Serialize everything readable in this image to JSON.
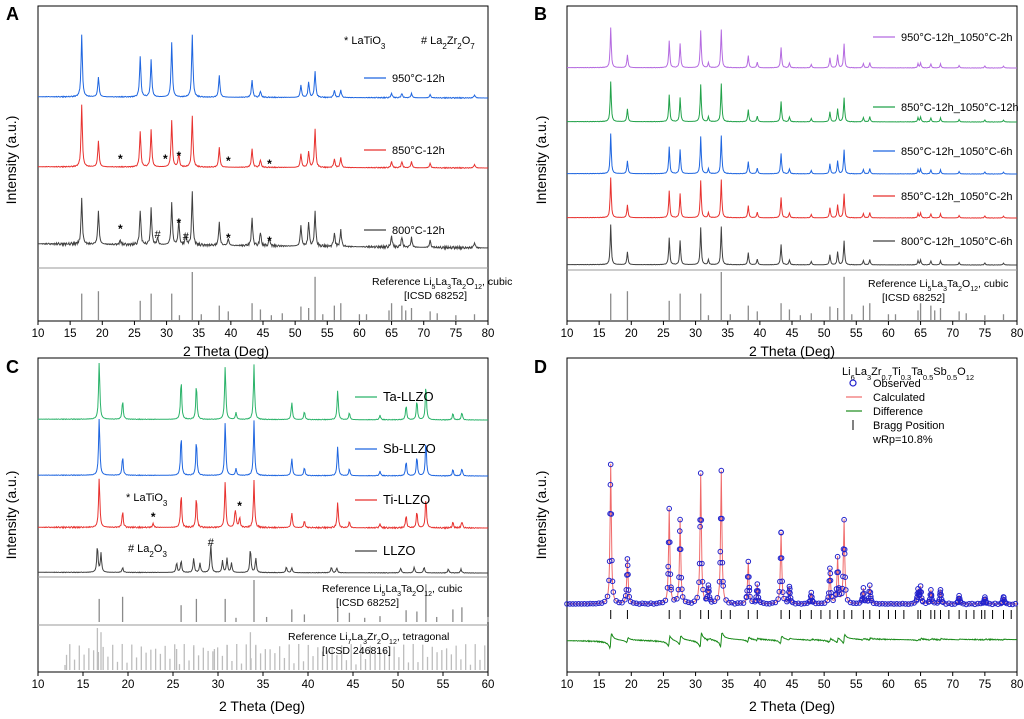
{
  "chart_data": [
    {
      "panel": "A",
      "type": "line",
      "xlabel": "2 Theta (Deg)",
      "ylabel": "Intensity (a.u.)",
      "xlim": [
        10,
        80
      ],
      "xticks": [
        10,
        15,
        20,
        25,
        30,
        35,
        40,
        45,
        50,
        55,
        60,
        65,
        70,
        75,
        80
      ],
      "annotations_header": [
        "* LaTiO3",
        "# La2Zr2O7"
      ],
      "series": [
        {
          "name": "950°C-12h",
          "color": "#1f66e0",
          "peaks": [
            [
              16.8,
              1.0
            ],
            [
              19.4,
              0.32
            ],
            [
              25.9,
              0.66
            ],
            [
              27.6,
              0.6
            ],
            [
              30.8,
              0.88
            ],
            [
              34.0,
              1.0
            ],
            [
              38.2,
              0.35
            ],
            [
              43.3,
              0.28
            ],
            [
              44.6,
              0.1
            ],
            [
              50.9,
              0.2
            ],
            [
              52.1,
              0.25
            ],
            [
              53.1,
              0.42
            ],
            [
              56.1,
              0.12
            ],
            [
              57.1,
              0.12
            ],
            [
              65.0,
              0.07
            ],
            [
              66.6,
              0.07
            ],
            [
              68.1,
              0.07
            ],
            [
              71.0,
              0.05
            ],
            [
              77.9,
              0.05
            ]
          ]
        },
        {
          "name": "850°C-12h",
          "color": "#e8322f",
          "peaks": [
            [
              16.8,
              1.0
            ],
            [
              19.4,
              0.42
            ],
            [
              25.9,
              0.58
            ],
            [
              27.6,
              0.6
            ],
            [
              30.8,
              0.75
            ],
            [
              31.9,
              0.22
            ],
            [
              34.0,
              0.82
            ],
            [
              38.2,
              0.32
            ],
            [
              43.3,
              0.3
            ],
            [
              44.6,
              0.12
            ],
            [
              50.9,
              0.22
            ],
            [
              52.1,
              0.26
            ],
            [
              53.1,
              0.62
            ],
            [
              56.1,
              0.14
            ],
            [
              57.1,
              0.16
            ],
            [
              65.0,
              0.1
            ],
            [
              66.6,
              0.1
            ],
            [
              68.1,
              0.1
            ],
            [
              71.0,
              0.07
            ],
            [
              77.9,
              0.06
            ]
          ]
        },
        {
          "name": "800°C-12h",
          "color": "#404040",
          "peaks": [
            [
              16.8,
              0.65
            ],
            [
              19.4,
              0.48
            ],
            [
              22.8,
              0.06
            ],
            [
              25.9,
              0.5
            ],
            [
              27.6,
              0.52
            ],
            [
              28.6,
              0.1
            ],
            [
              30.8,
              0.6
            ],
            [
              31.9,
              0.35
            ],
            [
              33.0,
              0.14
            ],
            [
              34.0,
              0.75
            ],
            [
              38.2,
              0.33
            ],
            [
              39.6,
              0.1
            ],
            [
              43.3,
              0.4
            ],
            [
              44.6,
              0.2
            ],
            [
              46.0,
              0.1
            ],
            [
              50.9,
              0.3
            ],
            [
              52.1,
              0.35
            ],
            [
              53.1,
              0.5
            ],
            [
              56.1,
              0.2
            ],
            [
              57.1,
              0.24
            ],
            [
              65.0,
              0.16
            ],
            [
              66.6,
              0.15
            ],
            [
              68.1,
              0.14
            ],
            [
              71.0,
              0.1
            ],
            [
              77.9,
              0.08
            ]
          ]
        }
      ],
      "star_markers_850": [
        22.8,
        29.8,
        31.9,
        39.6,
        46.0
      ],
      "star_markers_800": [
        22.8,
        31.9,
        39.6,
        46.0
      ],
      "hash_markers_800": [
        28.6,
        33.0
      ],
      "reference": {
        "label_line1": "Reference Li5La3Ta2O12, cubic",
        "label_line2": "[ICSD 68252]"
      }
    },
    {
      "panel": "B",
      "type": "line",
      "xlabel": "2 Theta (Deg)",
      "ylabel": "Intensity (a.u.)",
      "xlim": [
        10,
        80
      ],
      "xticks": [
        10,
        15,
        20,
        25,
        30,
        35,
        40,
        45,
        50,
        55,
        60,
        65,
        70,
        75,
        80
      ],
      "series": [
        {
          "name": "950°C-12h_1050°C-2h",
          "color": "#b56be0"
        },
        {
          "name": "850°C-12h_1050°C-12h",
          "color": "#22a24a"
        },
        {
          "name": "850°C-12h_1050°C-6h",
          "color": "#1f66e0"
        },
        {
          "name": "850°C-12h_1050°C-2h",
          "color": "#e8322f"
        },
        {
          "name": "800°C-12h_1050°C-6h",
          "color": "#404040"
        }
      ],
      "reference": {
        "label_line1": "Reference Li5La3Ta2O12, cubic",
        "label_line2": "[ICSD 68252]"
      }
    },
    {
      "panel": "C",
      "type": "line",
      "xlabel": "2 Theta (Deg)",
      "ylabel": "Intensity (a.u.)",
      "xlim": [
        10,
        60
      ],
      "xticks": [
        10,
        15,
        20,
        25,
        30,
        35,
        40,
        45,
        50,
        55,
        60
      ],
      "series": [
        {
          "name": "Ta-LLZO",
          "color": "#2bb36a"
        },
        {
          "name": "Sb-LLZO",
          "color": "#1f66e0"
        },
        {
          "name": "Ti-LLZO",
          "color": "#e8322f"
        },
        {
          "name": "LLZO",
          "color": "#404040"
        }
      ],
      "annot_ti": "* LaTiO3",
      "annot_llzo": "# La2O3",
      "reference_cubic": {
        "label_line1": "Reference Li5La3Ta2O12, cubic",
        "label_line2": "[ICSD 68252]"
      },
      "reference_tetragonal": {
        "label_line1": "Reference Li7La3Zr2O12, tetragonal",
        "label_line2": "[ICSD 246816]"
      }
    },
    {
      "panel": "D",
      "type": "scatter",
      "title": "Li6La3Zr0.7Ti0.3Ta0.5Sb0.5O12",
      "xlabel": "2 Theta (Deg)",
      "ylabel": "Intensity (a.u.)",
      "xlim": [
        10,
        80
      ],
      "xticks": [
        10,
        15,
        20,
        25,
        30,
        35,
        40,
        45,
        50,
        55,
        60,
        65,
        70,
        75,
        80
      ],
      "legend": [
        "Observed",
        "Calculated",
        "Difference",
        "Bragg Position"
      ],
      "wRp": "wRp=10.8%",
      "colors": {
        "observed": "#2222cc",
        "calculated": "#f06a6a",
        "difference": "#1a8a1a",
        "bragg": "#000000"
      },
      "peaks": [
        [
          16.8,
          1.0
        ],
        [
          19.4,
          0.32
        ],
        [
          25.9,
          0.68
        ],
        [
          27.6,
          0.6
        ],
        [
          30.8,
          0.93
        ],
        [
          32.0,
          0.12
        ],
        [
          34.0,
          0.95
        ],
        [
          38.2,
          0.3
        ],
        [
          39.6,
          0.14
        ],
        [
          43.3,
          0.51
        ],
        [
          44.6,
          0.12
        ],
        [
          48.0,
          0.08
        ],
        [
          50.9,
          0.25
        ],
        [
          52.1,
          0.33
        ],
        [
          53.1,
          0.6
        ],
        [
          56.1,
          0.11
        ],
        [
          57.1,
          0.13
        ],
        [
          64.6,
          0.1
        ],
        [
          65.0,
          0.12
        ],
        [
          66.6,
          0.1
        ],
        [
          68.1,
          0.1
        ],
        [
          71.0,
          0.06
        ],
        [
          75.0,
          0.05
        ],
        [
          77.9,
          0.05
        ]
      ]
    }
  ],
  "panel_letters": [
    "A",
    "B",
    "C",
    "D"
  ]
}
